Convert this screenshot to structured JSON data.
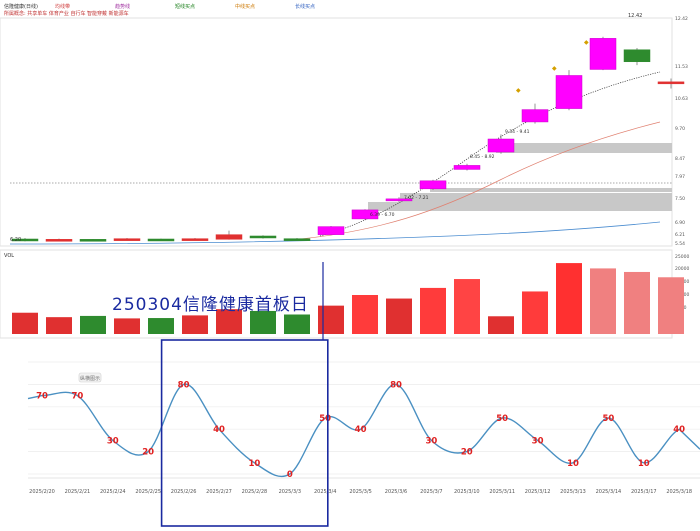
{
  "top_info": {
    "stock_label": "信隆健康(日线)",
    "indicators": [
      "均线带",
      "趋势线",
      "短线买点",
      "中线买点",
      "长线买点"
    ]
  },
  "concept_line": "所属概念: 共享单车 体育产业 自行车 智能穿戴 新能源车",
  "candles": [
    {
      "o": 6.3,
      "c": 6.35,
      "h": 6.38,
      "l": 6.28,
      "color": "green"
    },
    {
      "o": 6.32,
      "c": 6.34,
      "h": 6.36,
      "l": 6.3,
      "color": "red"
    },
    {
      "o": 6.34,
      "c": 6.32,
      "h": 6.35,
      "l": 6.3,
      "color": "green"
    },
    {
      "o": 6.32,
      "c": 6.36,
      "h": 6.38,
      "l": 6.31,
      "color": "red"
    },
    {
      "o": 6.35,
      "c": 6.33,
      "h": 6.36,
      "l": 6.32,
      "color": "green"
    },
    {
      "o": 6.33,
      "c": 6.36,
      "h": 6.38,
      "l": 6.32,
      "color": "red"
    },
    {
      "o": 6.34,
      "c": 6.48,
      "h": 6.6,
      "l": 6.33,
      "color": "red"
    },
    {
      "o": 6.44,
      "c": 6.38,
      "h": 6.46,
      "l": 6.36,
      "color": "green"
    },
    {
      "o": 6.36,
      "c": 6.34,
      "h": 6.38,
      "l": 6.32,
      "color": "green"
    },
    {
      "o": 6.48,
      "c": 6.72,
      "h": 6.74,
      "l": 6.46,
      "color": "magenta"
    },
    {
      "o": 6.95,
      "c": 7.22,
      "h": 7.24,
      "l": 6.92,
      "color": "magenta"
    },
    {
      "o": 7.49,
      "c": 7.55,
      "h": 7.6,
      "l": 7.45,
      "color": "magenta"
    },
    {
      "o": 7.85,
      "c": 8.09,
      "h": 8.12,
      "l": 7.82,
      "color": "magenta"
    },
    {
      "o": 8.43,
      "c": 8.55,
      "h": 8.6,
      "l": 8.4,
      "color": "magenta"
    },
    {
      "o": 8.95,
      "c": 9.34,
      "h": 9.48,
      "l": 8.9,
      "color": "magenta"
    },
    {
      "o": 9.85,
      "c": 10.22,
      "h": 10.4,
      "l": 9.8,
      "color": "magenta"
    },
    {
      "o": 10.25,
      "c": 11.24,
      "h": 11.4,
      "l": 10.2,
      "color": "magenta"
    },
    {
      "o": 11.42,
      "c": 12.35,
      "h": 12.4,
      "l": 11.4,
      "color": "magenta"
    },
    {
      "o": 12.01,
      "c": 11.65,
      "h": 12.06,
      "l": 11.55,
      "color": "green"
    },
    {
      "o": 11.05,
      "c": 11.0,
      "h": 11.15,
      "l": 10.85,
      "color": "red"
    }
  ],
  "price_labels": {
    "p1": "6.20",
    "p2": "7.02 - 7.21",
    "p3": "6.39 - 6.70",
    "p4": "8.45 - 8.92",
    "p5": "9.34 - 9.41",
    "high": "12.42"
  },
  "right_axis": [
    "12.42",
    "11.53",
    "10.63",
    "9.70",
    "8.47",
    "7.97",
    "7.50",
    "6.90",
    "6.21",
    "5.54"
  ],
  "volume_info": {
    "label": "VOL",
    "values": [
      "1.20",
      "0.95",
      "1.02",
      "0.88",
      "0.90",
      "1.05",
      "1.40",
      "1.30",
      "1.10",
      "1.60",
      "2.20",
      "2.00",
      "2.60",
      "3.10",
      "1.00",
      "2.40",
      "4.00",
      "3.70",
      "3.50",
      "3.20"
    ]
  },
  "volume_axis": [
    "25000",
    "20000",
    "15000",
    "10000",
    "5000"
  ],
  "overlay_title": "250304信隆健康首板日",
  "bottom_legend": "纵横图示",
  "chart_data": {
    "type": "line",
    "x": [
      "2025/2/20",
      "2025/2/21",
      "2025/2/24",
      "2025/2/25",
      "2025/2/26",
      "2025/2/27",
      "2025/2/28",
      "2025/3/3",
      "2025/3/4",
      "2025/3/5",
      "2025/3/6",
      "2025/3/7",
      "2025/3/10",
      "2025/3/11",
      "2025/3/12",
      "2025/3/13",
      "2025/3/14",
      "2025/3/17",
      "2025/3/18"
    ],
    "values": [
      70,
      70,
      30,
      20,
      80,
      40,
      10,
      0,
      50,
      40,
      80,
      30,
      20,
      50,
      30,
      10,
      50,
      10,
      40
    ],
    "ylim": [
      0,
      100
    ],
    "grid": true,
    "highlight_range": [
      "2025/2/26",
      "2025/3/3"
    ],
    "line_color": "#4a90c2",
    "label_color": "#e02020"
  }
}
